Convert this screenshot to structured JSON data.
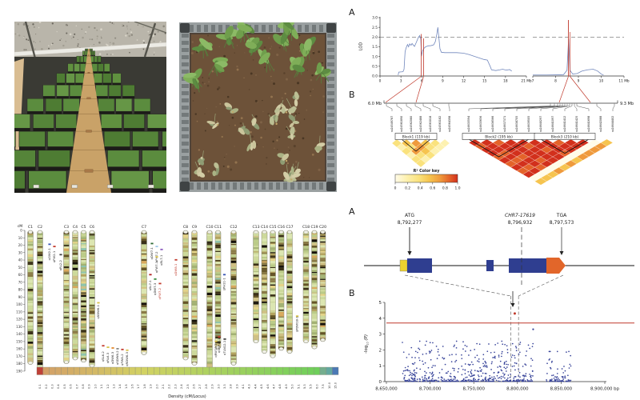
{
  "lod_panel": {
    "label": "A",
    "ylabel": "LOD",
    "ytick_labels": [
      "3.0",
      "2.5",
      "2.0",
      "1.5",
      "1.0",
      "0.5",
      "0.0"
    ],
    "left_xtick_labels": [
      "0",
      "3",
      "6",
      "9",
      "12",
      "15",
      "18",
      "21 Mb"
    ],
    "right_xtick_labels": [
      "7",
      "8",
      "9",
      "10",
      "11 Mb"
    ],
    "threshold": 2.0
  },
  "ld_panel": {
    "label": "B",
    "left_edge": "6.0 Mb",
    "right_edge": "9.3 Mb",
    "left_markers": [
      "ss24549787",
      "ss24561890",
      "ss24562080",
      "ss24562488",
      "ss24563018",
      "ss24563182",
      "ss24564398"
    ],
    "right_markers": [
      "ss24635594",
      "ss24635656",
      "ss24636566",
      "ss24637371",
      "ss24638705",
      "ss24639505",
      "ss24640297",
      "ss24641097",
      "ss24641412",
      "ss24641425",
      "ss24641698",
      "ss24642088",
      "ss24644402"
    ],
    "blocks": [
      {
        "name": "Block1 (119 kb)",
        "triangle": "left",
        "from": 1,
        "to": 4
      },
      {
        "name": "Block2 (195 kb)",
        "triangle": "right",
        "from": 0,
        "to": 5
      },
      {
        "name": "Block3 (210 kb)",
        "triangle": "right",
        "from": 6,
        "to": 10
      }
    ],
    "color_key": {
      "title": "R² Color key",
      "ticks": [
        "0",
        "0.2",
        "0.4",
        "0.6",
        "0.8",
        "1.0"
      ]
    }
  },
  "map_panel": {
    "axis_label": "cM",
    "axis_ticks": [
      0,
      10,
      20,
      30,
      40,
      50,
      60,
      70,
      80,
      90,
      100,
      110,
      120,
      130,
      140,
      150,
      160,
      170,
      180,
      190
    ],
    "chromosomes": [
      {
        "name": "C1",
        "length_cM": 181
      },
      {
        "name": "C2",
        "length_cM": 188
      },
      {
        "name": "C3",
        "length_cM": 180
      },
      {
        "name": "C4",
        "length_cM": 175
      },
      {
        "name": "C5",
        "length_cM": 178
      },
      {
        "name": "C6",
        "length_cM": 185
      },
      {
        "name": "C7",
        "length_cM": 168
      },
      {
        "name": "C8",
        "length_cM": 175
      },
      {
        "name": "C9",
        "length_cM": 182
      },
      {
        "name": "C10",
        "length_cM": 189
      },
      {
        "name": "C11",
        "length_cM": 160
      },
      {
        "name": "C12",
        "length_cM": 182
      },
      {
        "name": "C13",
        "length_cM": 152
      },
      {
        "name": "C14",
        "length_cM": 166
      },
      {
        "name": "C15",
        "length_cM": 172
      },
      {
        "name": "C16",
        "length_cM": 162
      },
      {
        "name": "C17",
        "length_cM": 166
      },
      {
        "name": "C18",
        "length_cM": 152
      },
      {
        "name": "C19",
        "length_cM": 160
      },
      {
        "name": "C20",
        "length_cM": 150
      }
    ],
    "qtls": [
      {
        "chrom": "C2",
        "cM": 21,
        "dx": 12,
        "label": "qGW2-1",
        "tick": "#3a56b4",
        "color": "#222222"
      },
      {
        "chrom": "C2",
        "cM": 24,
        "dx": 18,
        "label": "qFW2-1",
        "tick": "#c23b2e",
        "color": "#222222"
      },
      {
        "chrom": "C2",
        "cM": 35,
        "dx": 26,
        "label": "qRL2-2",
        "tick": "#444444",
        "color": "#222222"
      },
      {
        "chrom": "C6",
        "cM": 100,
        "dx": 8,
        "label": "qSDW6-1",
        "tick": "#d8c24a",
        "color": "#222222"
      },
      {
        "chrom": "C6",
        "cM": 158,
        "dx": 14,
        "label": "qSL6-2",
        "tick": "#c23b2e",
        "color": "#222222"
      },
      {
        "chrom": "C6",
        "cM": 160,
        "dx": 20,
        "label": "qRL6-3",
        "tick": "#d8c24a",
        "color": "#222222"
      },
      {
        "chrom": "C6",
        "cM": 161,
        "dx": 26,
        "label": "qDW6-3",
        "tick": "#e2882f",
        "color": "#222222"
      },
      {
        "chrom": "C6",
        "cM": 162,
        "dx": 32,
        "label": "qSDW6-2",
        "tick": "#888888",
        "color": "#222222"
      },
      {
        "chrom": "C6",
        "cM": 163,
        "dx": 38,
        "label": "qFW6-2",
        "tick": "#c23b2e",
        "color": "#222222"
      },
      {
        "chrom": "C6",
        "cM": 164,
        "dx": 44,
        "label": "qRDW6-3",
        "tick": "#d8c24a",
        "color": "#222222"
      },
      {
        "chrom": "C7",
        "cM": 20,
        "dx": 10,
        "label": "qDW7-1",
        "tick": "#2e6b34",
        "color": "#222222"
      },
      {
        "chrom": "C7",
        "cM": 24,
        "dx": 16,
        "label": "qPH7-2",
        "tick": "#9ec7e8",
        "color": "#222222"
      },
      {
        "chrom": "C7",
        "cM": 28,
        "dx": 22,
        "label": "qRL7-1",
        "tick": "#8a5bbf",
        "color": "#222222"
      },
      {
        "chrom": "C7",
        "cM": 38,
        "dx": 16,
        "label": "qFW7-1",
        "tick": "#d8c24a",
        "color": "#222222"
      },
      {
        "chrom": "C7",
        "cM": 62,
        "dx": 8,
        "label": "qSL7-1",
        "tick": "#b22222",
        "color": "#222222"
      },
      {
        "chrom": "C7",
        "cM": 68,
        "dx": 14,
        "label": "qDW7-3",
        "tick": "#3a8c3f",
        "color": "#222222"
      },
      {
        "chrom": "C7",
        "cM": 74,
        "dx": 20,
        "label": "qFW7-2",
        "tick": "#c23b2e",
        "color": "#c0392b"
      },
      {
        "chrom": "C8",
        "cM": 42,
        "dx": -12,
        "label": "qDW8-1",
        "tick": "#c23b2e",
        "color": "#c0392b"
      },
      {
        "chrom": "C10",
        "cM": 152,
        "dx": 8,
        "label": "qRW10-1",
        "tick": "#d8c24a",
        "color": "#222222"
      },
      {
        "chrom": "C11",
        "cM": 62,
        "dx": 8,
        "label": "qPH11-1",
        "tick": "#3a56b4",
        "color": "#222222"
      },
      {
        "chrom": "C12",
        "cM": 146,
        "dx": -18,
        "label": "qGSP12-1",
        "tick": "#c23b2e",
        "color": "#222222"
      },
      {
        "chrom": "C12",
        "cM": 149,
        "dx": -11,
        "label": "qTLN12-1",
        "tick": "#444444",
        "color": "#222222"
      },
      {
        "chrom": "C18",
        "cM": 118,
        "dx": -11,
        "label": "qPDW18-1",
        "tick": "#d8c24a",
        "color": "#222222"
      }
    ],
    "density_legend": {
      "title": "Density (cM/Locus)",
      "values": [
        "0.1",
        "0.2",
        "0.3",
        "0.4",
        "0.5",
        "0.6",
        "0.7",
        "0.8",
        "0.9",
        "1.0",
        "1.1",
        "1.2",
        "1.3",
        "1.4",
        "1.5",
        "1.6",
        "1.7",
        "1.8",
        "1.9",
        "2.0",
        "2.1",
        "2.2",
        "2.3",
        "2.4",
        "2.5",
        "2.6",
        "2.7",
        "2.8",
        "2.9",
        "3.0",
        "3.3",
        "3.8",
        "3.9",
        "4.1",
        "4.3",
        "4.4",
        "4.5",
        "4.6",
        "4.7",
        "4.8",
        "4.9",
        "5.0",
        "5.1",
        "5.3",
        "5.5",
        "6.0",
        "7.5",
        "10.0",
        "15.0"
      ]
    }
  },
  "gene_panel": {
    "label": "A",
    "atg": {
      "codon": "ATG",
      "position": "8,792,277"
    },
    "gene": {
      "name": "CHR7-17619",
      "position": "8,796,932"
    },
    "tga": {
      "codon": "TGA",
      "position": "8,797,573"
    }
  },
  "manhattan_panel": {
    "label": "B",
    "ylabel_prefix": "-log",
    "ylabel_sub": "10",
    "ylabel_suffix": " (P)",
    "ytick_labels": [
      "5",
      "4",
      "3",
      "2",
      "1",
      "0"
    ],
    "xtick_labels": [
      "8,650,000",
      "8,700,000",
      "8,750,000",
      "8,800,000",
      "8,850,000",
      "8,900,000"
    ],
    "x_unit": "bp"
  },
  "colors": {
    "lod_line": "#7288bd",
    "highlight_red": "#c0392b",
    "manhattan_point": "#39459a",
    "exon_blue": "#2f3e90",
    "utr_yellow": "#ecd12f",
    "utr_orange": "#e2662a"
  },
  "chart_data": [
    {
      "type": "line",
      "xlabel": "Mb",
      "ylabel": "LOD",
      "xlim": [
        0,
        21
      ],
      "ylim": [
        0,
        3
      ],
      "threshold": 2.0,
      "highlight_x": 6.0,
      "points": [
        [
          2.6,
          0.05
        ],
        [
          2.7,
          0.2
        ],
        [
          3.3,
          0.22
        ],
        [
          3.45,
          0.35
        ],
        [
          3.6,
          1.25
        ],
        [
          3.75,
          1.45
        ],
        [
          3.95,
          1.62
        ],
        [
          4.1,
          1.5
        ],
        [
          4.25,
          1.65
        ],
        [
          4.45,
          1.58
        ],
        [
          4.6,
          1.67
        ],
        [
          4.75,
          1.6
        ],
        [
          4.95,
          1.52
        ],
        [
          5.2,
          1.72
        ],
        [
          5.5,
          1.98
        ],
        [
          5.7,
          2.08
        ],
        [
          5.85,
          1.9
        ],
        [
          5.95,
          1.02
        ],
        [
          6.1,
          1.3
        ],
        [
          6.3,
          1.42
        ],
        [
          6.55,
          1.5
        ],
        [
          6.9,
          1.55
        ],
        [
          7.3,
          1.56
        ],
        [
          7.7,
          1.6
        ],
        [
          7.95,
          1.78
        ],
        [
          8.15,
          2.15
        ],
        [
          8.3,
          2.5
        ],
        [
          8.45,
          1.95
        ],
        [
          8.6,
          1.4
        ],
        [
          8.8,
          1.22
        ],
        [
          9.3,
          1.2
        ],
        [
          10,
          1.2
        ],
        [
          11,
          1.2
        ],
        [
          12,
          1.17
        ],
        [
          12.8,
          1.1
        ],
        [
          13.6,
          1.0
        ],
        [
          14.3,
          0.92
        ],
        [
          14.9,
          0.85
        ],
        [
          15.4,
          0.82
        ],
        [
          15.8,
          0.5
        ],
        [
          16,
          0.32
        ],
        [
          16.6,
          0.28
        ],
        [
          17.2,
          0.32
        ],
        [
          17.6,
          0.35
        ],
        [
          18.1,
          0.3
        ],
        [
          18.6,
          0.33
        ],
        [
          18.9,
          0.25
        ]
      ]
    },
    {
      "type": "line",
      "xlabel": "Mb",
      "ylabel": "LOD",
      "xlim": [
        7,
        11
      ],
      "ylim": [
        0,
        3
      ],
      "threshold": 2.0,
      "highlight_x": 8.57,
      "points": [
        [
          7.0,
          0.05
        ],
        [
          7.6,
          0.05
        ],
        [
          8.1,
          0.06
        ],
        [
          8.35,
          0.07
        ],
        [
          8.5,
          0.3
        ],
        [
          8.57,
          1.9
        ],
        [
          8.63,
          0.3
        ],
        [
          8.75,
          0.1
        ],
        [
          8.95,
          0.13
        ],
        [
          9.15,
          0.25
        ],
        [
          9.4,
          0.32
        ],
        [
          9.65,
          0.35
        ],
        [
          9.85,
          0.25
        ],
        [
          10.0,
          0.1
        ],
        [
          10.1,
          0.05
        ]
      ]
    },
    {
      "type": "heatmap",
      "scale_ticks": [
        0,
        0.2,
        0.4,
        0.6,
        0.8,
        1.0
      ],
      "palette": [
        "#fffbe8",
        "#fdf1b0",
        "#fae27d",
        "#f6c44f",
        "#ef9a3c",
        "#e4632a",
        "#d2301c"
      ],
      "left_triangle_levels": [
        [
          2,
          3,
          4,
          3,
          2,
          1
        ],
        [
          1,
          2,
          4,
          2,
          1
        ],
        [
          2,
          4,
          3,
          1
        ],
        [
          1,
          2,
          2
        ],
        [
          2,
          1
        ],
        [
          2
        ]
      ],
      "right_triangle_levels": [
        [
          6,
          6,
          5,
          6,
          6,
          6,
          6,
          5,
          6,
          6,
          0,
          3
        ],
        [
          5,
          6,
          6,
          6,
          5,
          6,
          6,
          6,
          6,
          0,
          4
        ],
        [
          6,
          6,
          6,
          6,
          6,
          5,
          6,
          6,
          0,
          4
        ],
        [
          6,
          5,
          6,
          6,
          6,
          6,
          5,
          0,
          4
        ],
        [
          5,
          6,
          5,
          6,
          6,
          6,
          0,
          4
        ],
        [
          6,
          5,
          6,
          5,
          6,
          0,
          3
        ],
        [
          5,
          6,
          6,
          6,
          0,
          4
        ],
        [
          6,
          5,
          5,
          0,
          3
        ],
        [
          5,
          6,
          0,
          4
        ],
        [
          6,
          0,
          3
        ],
        [
          0,
          3
        ],
        [
          3
        ]
      ]
    },
    {
      "type": "scatter",
      "xlabel": "bp",
      "xlim": [
        8650000,
        8900000
      ],
      "ylim": [
        0,
        5
      ],
      "threshold": 3.7,
      "top_snp": [
        8796932,
        4.3
      ],
      "second_snp": [
        8818000,
        3.3
      ],
      "gene_start_bp": 8792277,
      "gene_end_bp": 8797573
    }
  ]
}
